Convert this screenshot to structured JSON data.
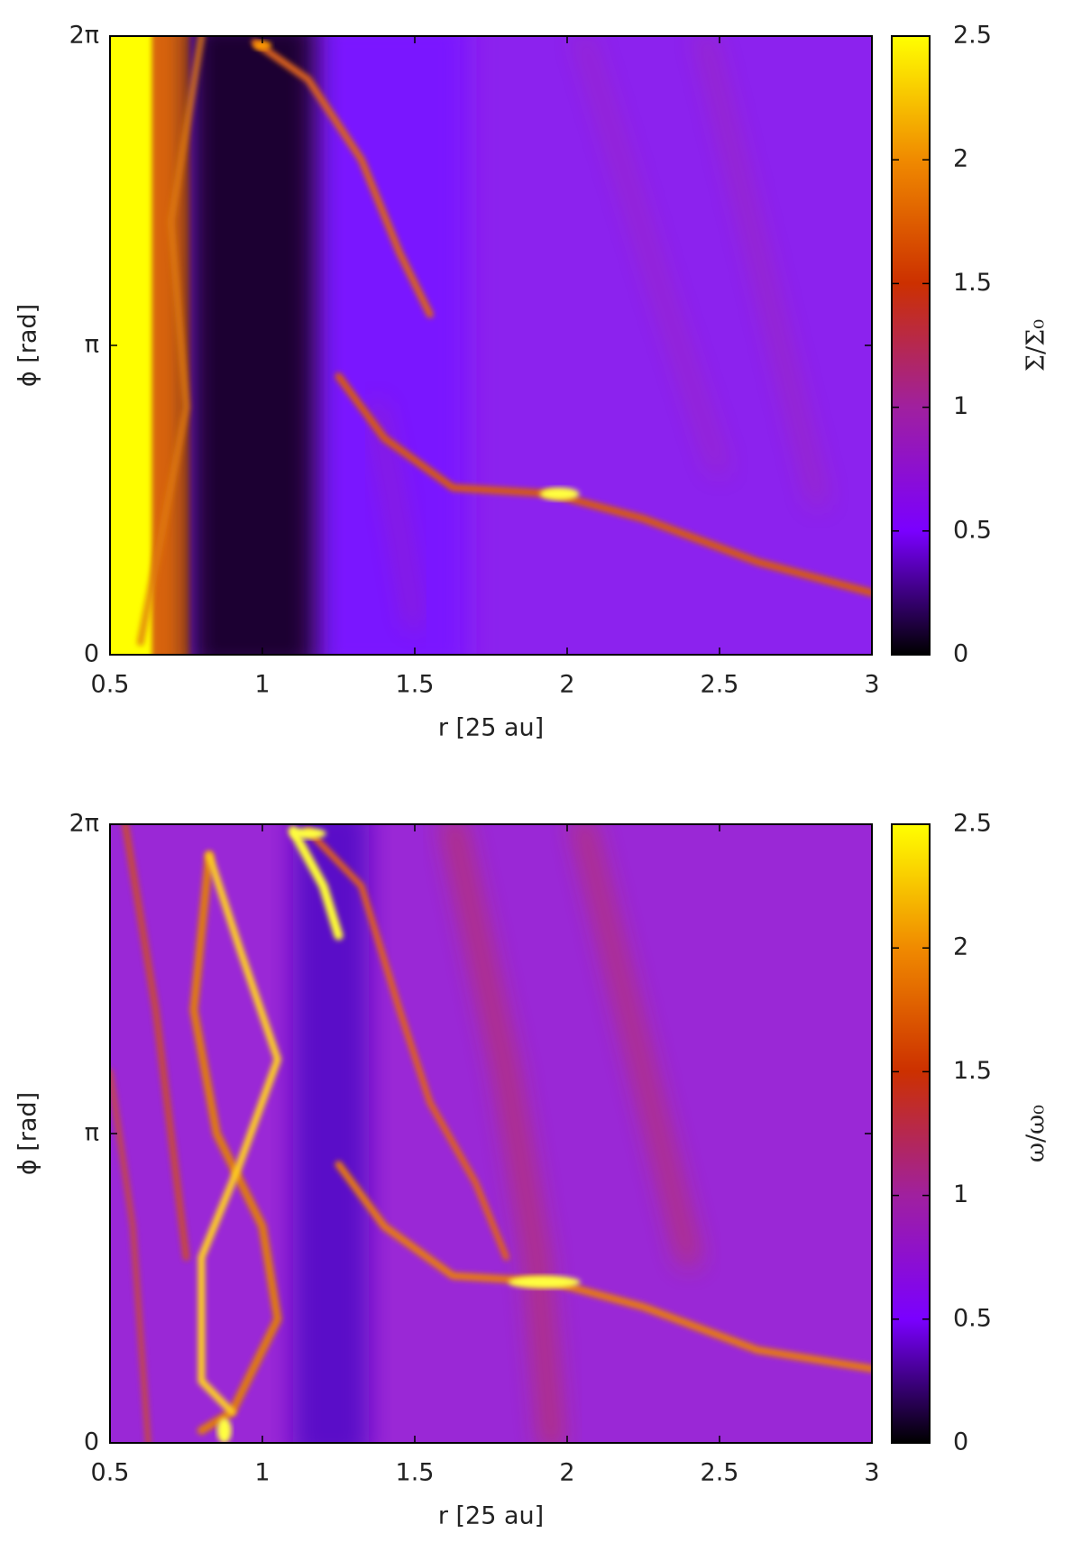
{
  "chart_data": [
    {
      "type": "heatmap",
      "xlabel": "r [25 au]",
      "ylabel": "ϕ [rad]",
      "colorbar_label": "Σ/Σ₀",
      "xlim": [
        0.5,
        3
      ],
      "xticks": [
        0.5,
        1,
        1.5,
        2,
        2.5,
        3
      ],
      "ylim": [
        0,
        6.28319
      ],
      "yticks": [
        0,
        {
          "value": 3.14159,
          "label": "π"
        },
        {
          "value": 6.28319,
          "label": "2π"
        }
      ],
      "zlim": [
        0,
        2.5
      ],
      "zticks": [
        0,
        0.5,
        1,
        1.5,
        2,
        2.5
      ],
      "colormap": [
        "#000000",
        "#7a00ff",
        "#a0209f",
        "#cc3000",
        "#f08a00",
        "#ffff00"
      ]
    },
    {
      "type": "heatmap",
      "xlabel": "r [25 au]",
      "ylabel": "ϕ [rad]",
      "colorbar_label": "ω/ω₀",
      "xlim": [
        0.5,
        3
      ],
      "xticks": [
        0.5,
        1,
        1.5,
        2,
        2.5,
        3
      ],
      "ylim": [
        0,
        6.28319
      ],
      "yticks": [
        0,
        {
          "value": 3.14159,
          "label": "π"
        },
        {
          "value": 6.28319,
          "label": "2π"
        }
      ],
      "zlim": [
        0,
        2.5
      ],
      "zticks": [
        0,
        0.5,
        1,
        1.5,
        2,
        2.5
      ],
      "colormap": [
        "#000000",
        "#7a00ff",
        "#a0209f",
        "#cc3000",
        "#f08a00",
        "#ffff00"
      ]
    }
  ]
}
